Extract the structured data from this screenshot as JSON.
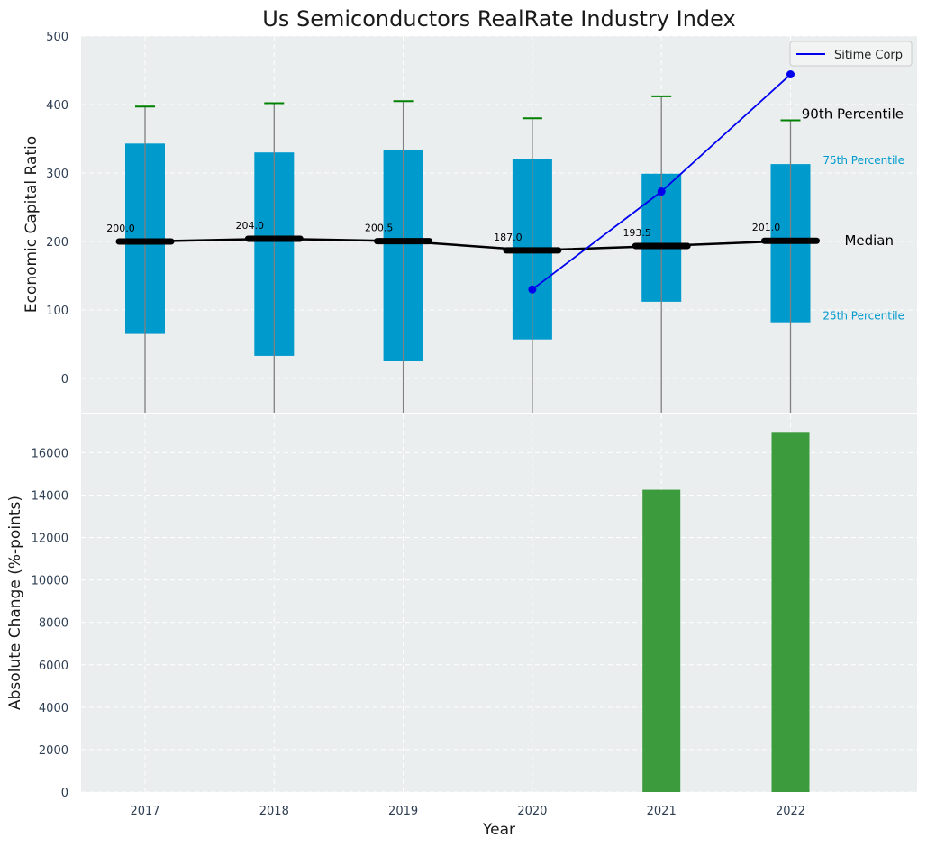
{
  "chart_data": [
    {
      "type": "bar",
      "title": "Us Semiconductors RealRate Industry Index",
      "ylabel": "Economic Capital Ratio",
      "ylim": [
        -50,
        500
      ],
      "yticks": [
        0,
        100,
        200,
        300,
        400,
        500
      ],
      "categories": [
        "2017",
        "2018",
        "2019",
        "2020",
        "2021",
        "2022"
      ],
      "distribution": {
        "p25": [
          65,
          33,
          25,
          57,
          112,
          82
        ],
        "p75": [
          343,
          330,
          333,
          321,
          299,
          313
        ],
        "p90": [
          397,
          402,
          405,
          380,
          412,
          377
        ],
        "median": [
          200.0,
          204.0,
          200.5,
          187.0,
          193.5,
          201.0
        ],
        "median_labels": [
          "200.0",
          "204.0",
          "200.5",
          "187.0",
          "193.5",
          "201.0"
        ]
      },
      "series": [
        {
          "name": "Sitime Corp",
          "color": "#0000ee",
          "x": [
            "2020",
            "2021",
            "2022"
          ],
          "values": [
            130,
            273,
            444
          ]
        }
      ],
      "annotations": {
        "p90": "90th Percentile",
        "p75": "75th Percentile",
        "median": "Median",
        "p25": "25th Percentile"
      },
      "colors": {
        "box": "#009acd",
        "median": "#000000",
        "whisker_cap": "#008000",
        "whisker": "#808080"
      },
      "legend_position": "top-right",
      "grid": true
    },
    {
      "type": "bar",
      "xlabel": "Year",
      "ylabel": "Absolute Change (%-points)",
      "ylim": [
        0,
        17800
      ],
      "yticks": [
        0,
        2000,
        4000,
        6000,
        8000,
        10000,
        12000,
        14000,
        16000
      ],
      "categories": [
        "2017",
        "2018",
        "2019",
        "2020",
        "2021",
        "2022"
      ],
      "values": [
        0,
        0,
        0,
        0,
        14250,
        16980
      ],
      "colors": {
        "bar": "#3c9b3c"
      },
      "grid": true
    }
  ]
}
